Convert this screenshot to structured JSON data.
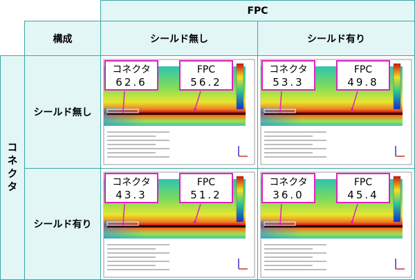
{
  "header": {
    "title": "FPC",
    "row_header": "構成",
    "column_label": "コネクタ",
    "columns": [
      "シールド無し",
      "シールド有り"
    ]
  },
  "rows": [
    {
      "label": "シールド無し",
      "cells": [
        {
          "connector_label": "コネクタ",
          "connector_value": "62.6",
          "fpc_label": "FPC",
          "fpc_value": "56.2"
        },
        {
          "connector_label": "コネクタ",
          "connector_value": "53.3",
          "fpc_label": "FPC",
          "fpc_value": "49.8"
        }
      ]
    },
    {
      "label": "シールド有り",
      "cells": [
        {
          "connector_label": "コネクタ",
          "connector_value": "43.3",
          "fpc_label": "FPC",
          "fpc_value": "51.2"
        },
        {
          "connector_label": "コネクタ",
          "connector_value": "36.0",
          "fpc_label": "FPC",
          "fpc_value": "45.4"
        }
      ]
    }
  ]
}
